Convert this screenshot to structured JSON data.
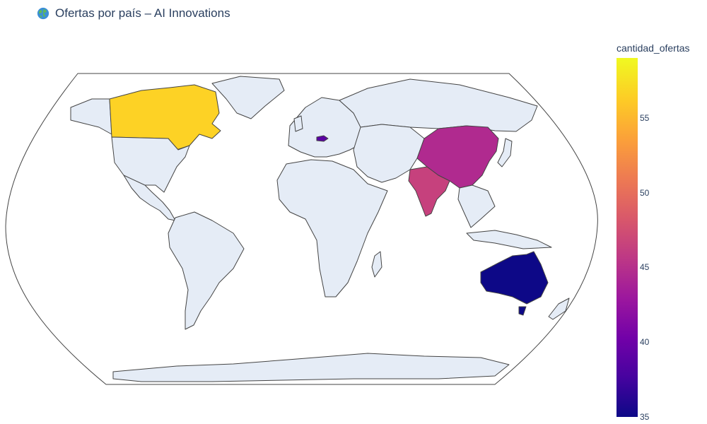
{
  "title": "Ofertas por país – AI Innovations",
  "title_icon": "globe-icon",
  "colorbar": {
    "title": "cantidad_ofertas",
    "min": 35,
    "max": 59,
    "ticks": [
      {
        "label": "55",
        "value": 55
      },
      {
        "label": "50",
        "value": 50
      },
      {
        "label": "45",
        "value": 45
      },
      {
        "label": "40",
        "value": 40
      },
      {
        "label": "35",
        "value": 35
      }
    ],
    "colorscale": "Plasma"
  },
  "map": {
    "projection": "natural earth",
    "land_color": "#e5ecf6",
    "border_color": "#444444",
    "highlighted_countries": [
      {
        "name": "Canada",
        "value": 57,
        "color": "#fdd225"
      },
      {
        "name": "China",
        "value": 44,
        "color": "#b02a8f"
      },
      {
        "name": "India",
        "value": 46,
        "color": "#c6417d"
      },
      {
        "name": "Australia",
        "value": 35,
        "color": "#0d0887"
      },
      {
        "name": "Austria",
        "value": 38,
        "color": "#5a02a3"
      }
    ]
  }
}
